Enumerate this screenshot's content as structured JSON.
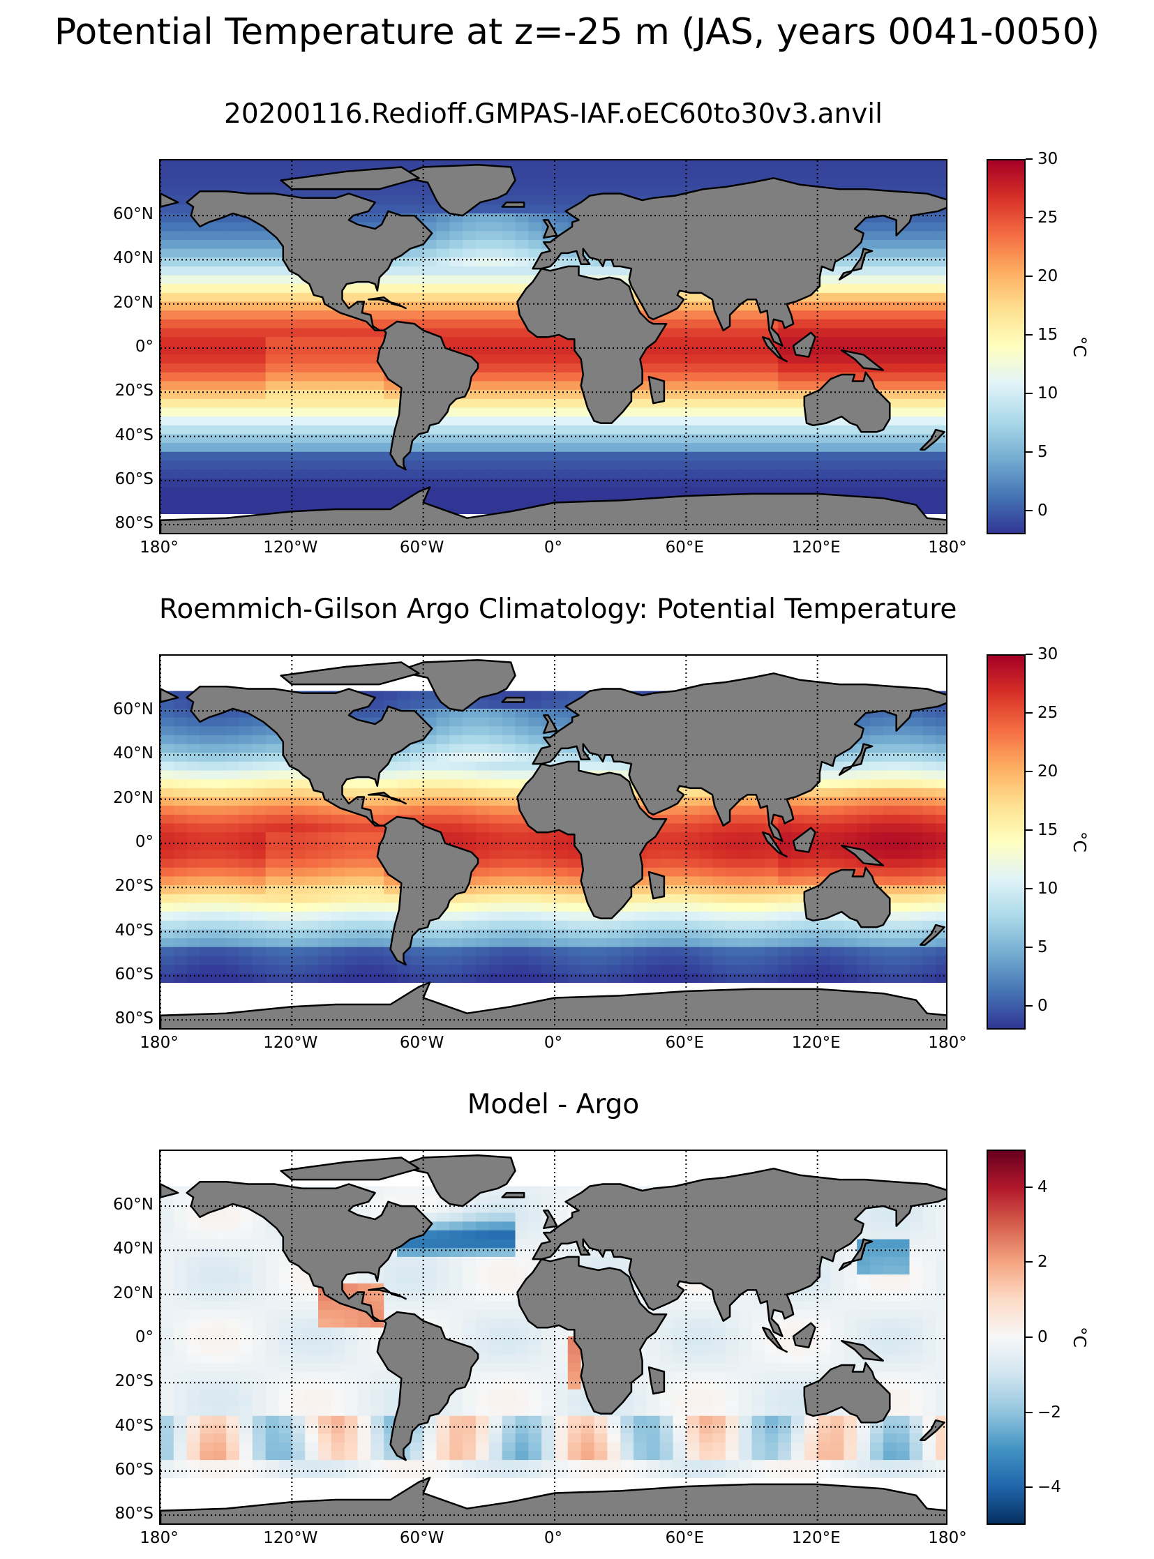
{
  "figure": {
    "title": "Potential Temperature at z=-25 m (JAS, years 0041-0050)"
  },
  "panels": [
    {
      "id": "model",
      "title": "20200116.Redioff.GMPAS-IAF.oEC60to30v3.anvil",
      "field": "model",
      "colormap": "RdYlBu_r",
      "colorbar": {
        "min": -2,
        "max": 30,
        "ticks": [
          0,
          5,
          10,
          15,
          20,
          25,
          30
        ],
        "tick_labels": [
          "0",
          "5",
          "10",
          "15",
          "20",
          "25",
          "30"
        ],
        "unit": "°C"
      }
    },
    {
      "id": "argo",
      "title": "Roemmich-Gilson Argo Climatology: Potential Temperature",
      "field": "obs",
      "colormap": "RdYlBu_r",
      "colorbar": {
        "min": -2,
        "max": 30,
        "ticks": [
          0,
          5,
          10,
          15,
          20,
          25,
          30
        ],
        "tick_labels": [
          "0",
          "5",
          "10",
          "15",
          "20",
          "25",
          "30"
        ],
        "unit": "°C"
      }
    },
    {
      "id": "bias",
      "title": "Model - Argo",
      "field": "bias",
      "colormap": "RdBu_r",
      "colorbar": {
        "min": -5,
        "max": 5,
        "ticks": [
          -4,
          -2,
          0,
          2,
          4
        ],
        "tick_labels": [
          "−4",
          "−2",
          "0",
          "2",
          "4"
        ],
        "unit": "°C"
      }
    }
  ],
  "axes": {
    "lat_ticks": [
      60,
      40,
      20,
      0,
      -20,
      -40,
      -60,
      -80
    ],
    "lat_labels": [
      "60°N",
      "40°N",
      "20°N",
      "0°",
      "20°S",
      "40°S",
      "60°S",
      "80°S"
    ],
    "lon_ticks": [
      -180,
      -120,
      -60,
      0,
      60,
      120,
      180
    ],
    "lon_labels": [
      "180°",
      "120°W",
      "60°W",
      "0°",
      "60°E",
      "120°E",
      "180°"
    ],
    "lon_range": [
      -180,
      180
    ],
    "lat_range": [
      -85,
      85
    ]
  },
  "colors": {
    "land": "#7f7f7f",
    "coast": "#000000",
    "missing": "#ffffff"
  }
}
